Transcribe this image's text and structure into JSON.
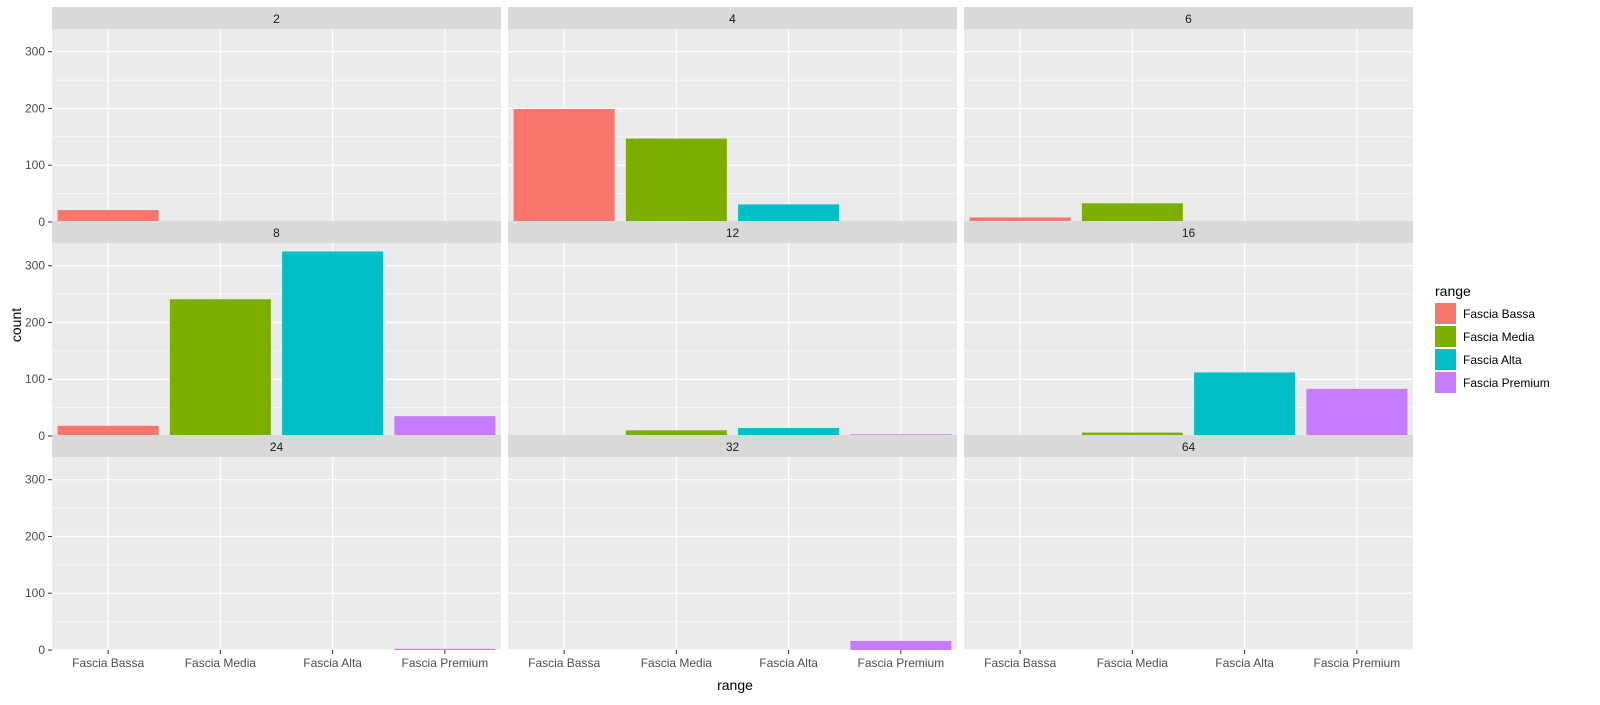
{
  "chart_data": {
    "type": "bar",
    "facet_variable": "",
    "facets": [
      {
        "label": "2",
        "values": [
          21,
          0,
          0,
          0
        ]
      },
      {
        "label": "4",
        "values": [
          199,
          147,
          31,
          0
        ]
      },
      {
        "label": "6",
        "values": [
          8,
          33,
          0,
          0
        ]
      },
      {
        "label": "8",
        "values": [
          18,
          241,
          325,
          35
        ]
      },
      {
        "label": "12",
        "values": [
          0,
          10,
          14,
          3
        ]
      },
      {
        "label": "16",
        "values": [
          0,
          6,
          112,
          83
        ]
      },
      {
        "label": "24",
        "values": [
          0,
          0,
          0,
          2
        ]
      },
      {
        "label": "32",
        "values": [
          0,
          0,
          0,
          16
        ]
      },
      {
        "label": "64",
        "values": [
          0,
          0,
          0,
          0
        ]
      }
    ],
    "categories": [
      "Fascia Bassa",
      "Fascia Media",
      "Fascia Alta",
      "Fascia Premium"
    ],
    "xlabel": "range",
    "ylabel": "count",
    "ylim": [
      0,
      340
    ],
    "yticks": [
      0,
      100,
      200,
      300
    ],
    "grid": true,
    "legend": {
      "title": "range",
      "placement": "right",
      "entries": [
        "Fascia Bassa",
        "Fascia Media",
        "Fascia Alta",
        "Fascia Premium"
      ]
    },
    "colors": {
      "Fascia Bassa": "#F8766D",
      "Fascia Media": "#7CAE00",
      "Fascia Alta": "#00BFC4",
      "Fascia Premium": "#C77CFF",
      "panel_background": "#EBEBEB",
      "strip_background": "#D9D9D9",
      "grid": "#FFFFFF"
    }
  }
}
